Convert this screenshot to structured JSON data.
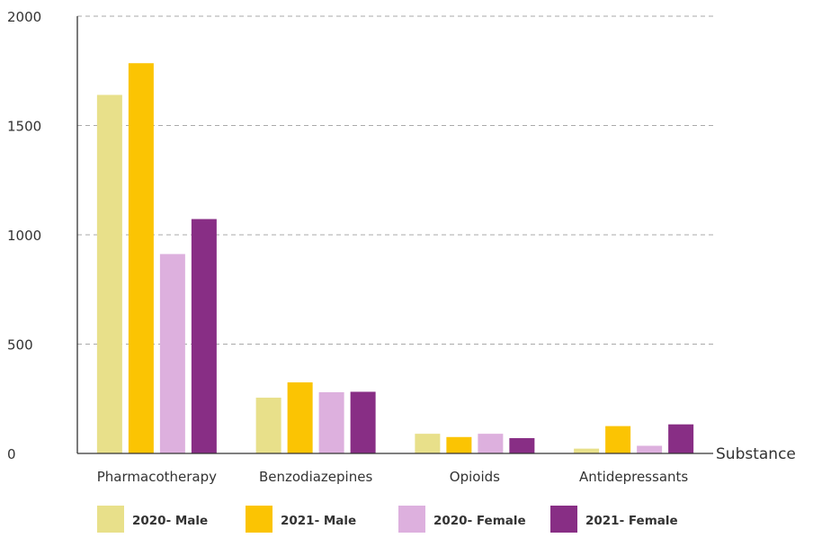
{
  "chart_data": {
    "type": "bar",
    "xlabel": "Substance",
    "ylabel": "",
    "ylim": [
      0,
      2000
    ],
    "yticks": [
      0,
      500,
      1000,
      1500,
      2000
    ],
    "grid": true,
    "legend_position": "bottom",
    "categories": [
      "Pharmacotherapy",
      "Benzodiazepines",
      "Opioids",
      "Antidepressants"
    ],
    "series": [
      {
        "name": "2020- Male",
        "color": "#e8e08a",
        "values": [
          1640,
          255,
          90,
          22
        ]
      },
      {
        "name": "2021- Male",
        "color": "#fbc403",
        "values": [
          1785,
          325,
          75,
          125
        ]
      },
      {
        "name": "2020- Female",
        "color": "#ddb0de",
        "values": [
          912,
          280,
          90,
          35
        ]
      },
      {
        "name": "2021- Female",
        "color": "#882e85",
        "values": [
          1072,
          282,
          70,
          133
        ]
      }
    ]
  }
}
